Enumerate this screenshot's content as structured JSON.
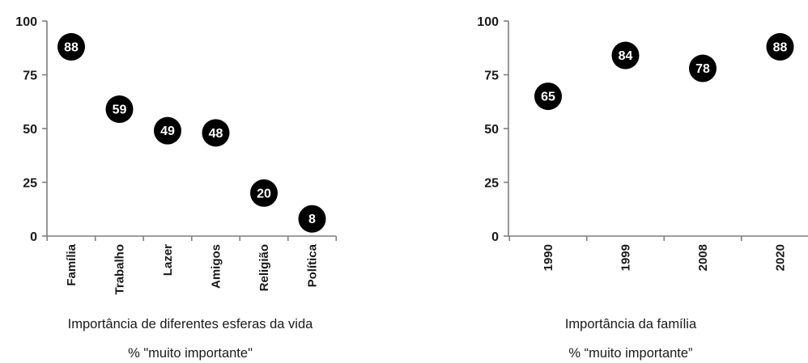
{
  "chart_data": [
    {
      "type": "scatter",
      "categories": [
        "Família",
        "Trabalho",
        "Lazer",
        "Amigos",
        "Religião",
        "Política"
      ],
      "values": [
        88,
        59,
        49,
        48,
        20,
        8
      ],
      "data_labels": [
        "88",
        "59",
        "49",
        "48",
        "20",
        "8"
      ],
      "yticks": [
        "0",
        "25",
        "50",
        "75",
        "100"
      ],
      "ylim": [
        0,
        100
      ],
      "title": "Importância de diferentes esferas da vida",
      "subtitle": "% \"muito importante\"",
      "grid": false,
      "marker_color": "#000000",
      "label_color": "#ffffff"
    },
    {
      "type": "scatter",
      "categories": [
        "1990",
        "1999",
        "2008",
        "2020"
      ],
      "values": [
        65,
        84,
        78,
        88
      ],
      "data_labels": [
        "65",
        "84",
        "78",
        "88"
      ],
      "yticks": [
        "0",
        "25",
        "50",
        "75",
        "100"
      ],
      "ylim": [
        0,
        100
      ],
      "title": "Importância da família",
      "subtitle": "% “muito importante”",
      "grid": false,
      "marker_color": "#000000",
      "label_color": "#ffffff"
    }
  ]
}
